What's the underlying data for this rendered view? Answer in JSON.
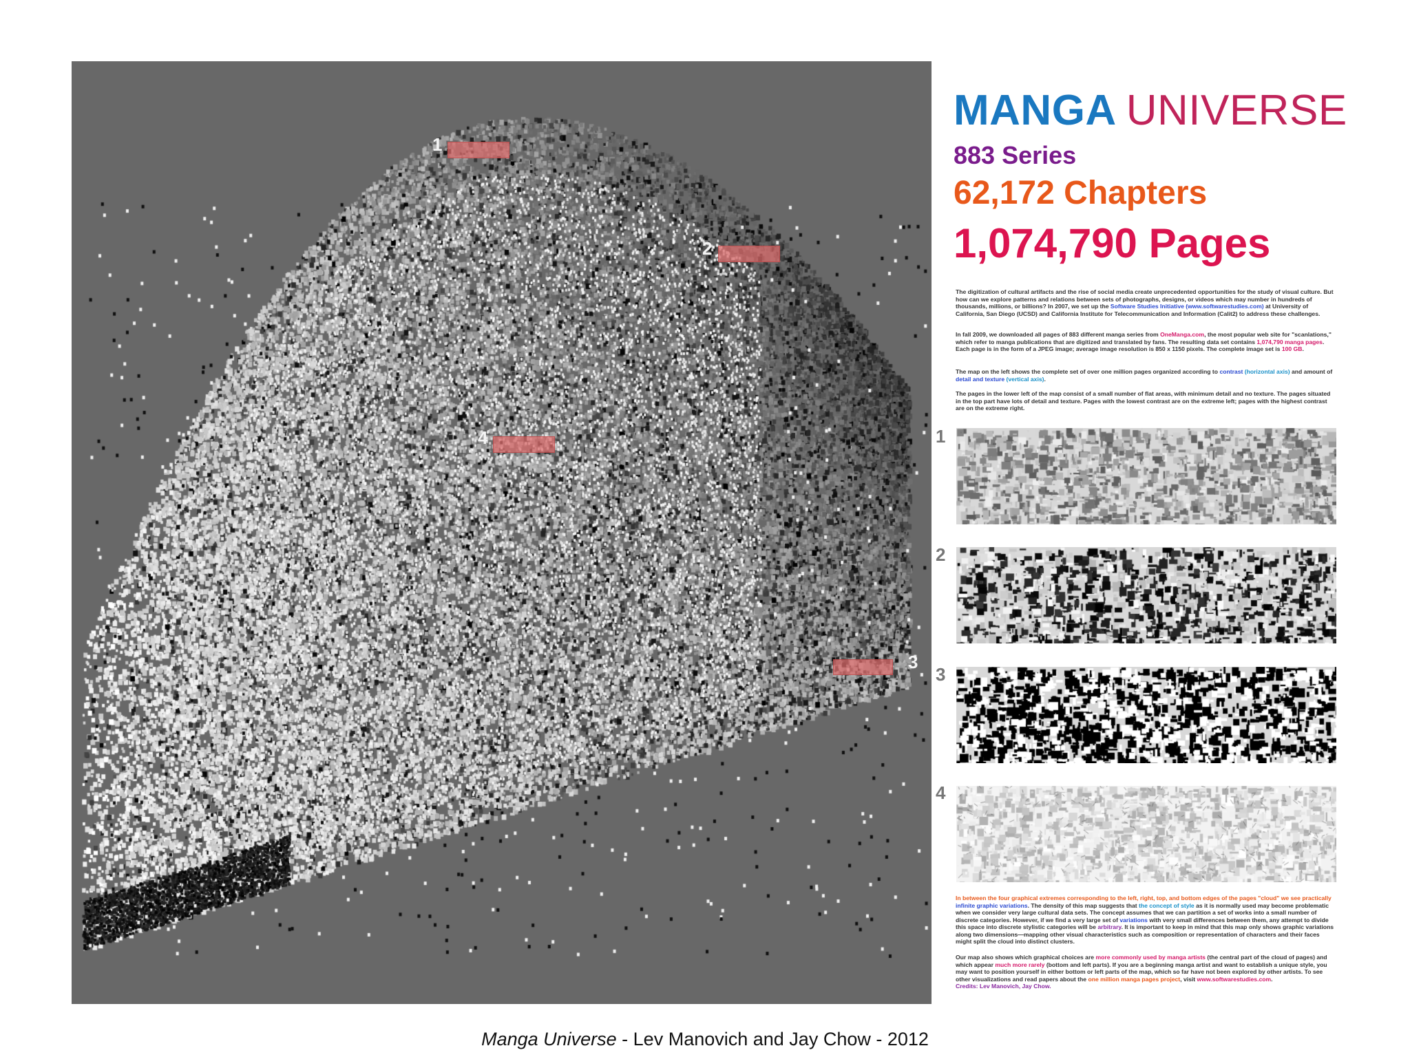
{
  "title": {
    "part1": "MANGA",
    "part2": "UNIVERSE"
  },
  "stats": {
    "series": "883 Series",
    "chapters": "62,172 Chapters",
    "pages": "1,074,790 Pages"
  },
  "intro": {
    "p1_a": "The digitization of cultural artifacts and the rise of social media create unprecedented opportunities for the study of visual culture. But how can we explore patterns and relations between sets of photographs, designs, or videos which may number in hundreds of thousands, millions, or billions? In 2007, we set up the ",
    "p1_link": "Software Studies Initiative (www.softwarestudies.com)",
    "p1_b": " at University of California, San Diego (UCSD) and California Institute for Telecommunication and Information (Calit2) to address these challenges.",
    "p2_a": "In fall 2009, we downloaded all pages of 883 different manga series from ",
    "p2_link": "OneManga.com",
    "p2_b": ", the most popular web site for \"scanlations,\" which refer to manga publications that are digitized and translated by fans. The resulting data set contains ",
    "p2_pages": "1,074,790 manga pages",
    "p2_c": ". Each page is in the form of a JPEG image; average image resolution is 850 x 1150 pixels. The complete image set is ",
    "p2_size": "100 GB",
    "p2_d": ".",
    "p3_a": "The map on the left shows the complete set of over one million pages organized according to ",
    "p3_contrast": "contrast",
    "p3_haxis": " (horizontal axis)",
    "p3_b": " and amount of ",
    "p3_detail": "detail and texture",
    "p3_vaxis": " (vertical axis)",
    "p3_c": ".",
    "p4": "The pages in the lower left of the map consist of a small number of flat areas, with minimum detail and no texture. The pages situated in the top part have lots of detail and texture. Pages with the lowest contrast are on the extreme left; pages with the highest contrast are on the extreme right."
  },
  "strips": [
    {
      "number": "1"
    },
    {
      "number": "2"
    },
    {
      "number": "3"
    },
    {
      "number": "4"
    }
  ],
  "markers": [
    {
      "number": "1"
    },
    {
      "number": "2"
    },
    {
      "number": "3"
    },
    {
      "number": "4"
    }
  ],
  "outro": {
    "p1_hl": "In between the four graphical extremes corresponding to the left, right, top, and bottom edges of the pages \"cloud\" we see ",
    "p1_practically": "practically",
    "p1_infinite": " infinite graphic variations",
    "p1_a": ". The density of this map suggests that ",
    "p1_concept": "the concept of style",
    "p1_b": " as it is normally used may become problematic when we consider very large cultural data sets. The concept assumes that we can partition a set of works into a small number of discrete categories. However, if we find a very large set of ",
    "p1_variations": "variations",
    "p1_c": " with very small differences between them, any attempt to divide this space into discrete stylistic categories will be ",
    "p1_arbitrary": "arbitrary",
    "p1_d": ". It is important to keep in mind that this map only shows graphic variations along two dimensions—mapping other visual characteristics such as composition or representation of characters and their faces might split the cloud into distinct clusters.",
    "p2_a": "Our map also shows which graphical choices are ",
    "p2_common": "more commonly used by manga artists",
    "p2_b": " (the central part of the cloud of pages) and which appear ",
    "p2_rare": "much more rarely",
    "p2_c": " (bottom and left parts). If you are a beginning manga artist and want to establish a unique style, you may want to position yourself in either bottom or left parts of the map, which so far have not been explored by other artists. To see other visualizations and read papers about the ",
    "p2_project": "one million manga pages project",
    "p2_d": ", visit ",
    "p2_url": "www.softwarestudies.com",
    "p2_e": ".",
    "credits_label": "Credits: ",
    "credits_names": "Lev Manovich, Jay Chow."
  },
  "caption": {
    "title": "Manga Universe",
    "rest": " - Lev Manovich and Jay Chow - 2012"
  },
  "colors": {
    "map_background": "#686868",
    "title_blue": "#1a78c0",
    "title_magenta": "#c0245a",
    "series_purple": "#7a1c8c",
    "chapters_orange": "#e8581a",
    "pages_pink": "#dc1450"
  }
}
